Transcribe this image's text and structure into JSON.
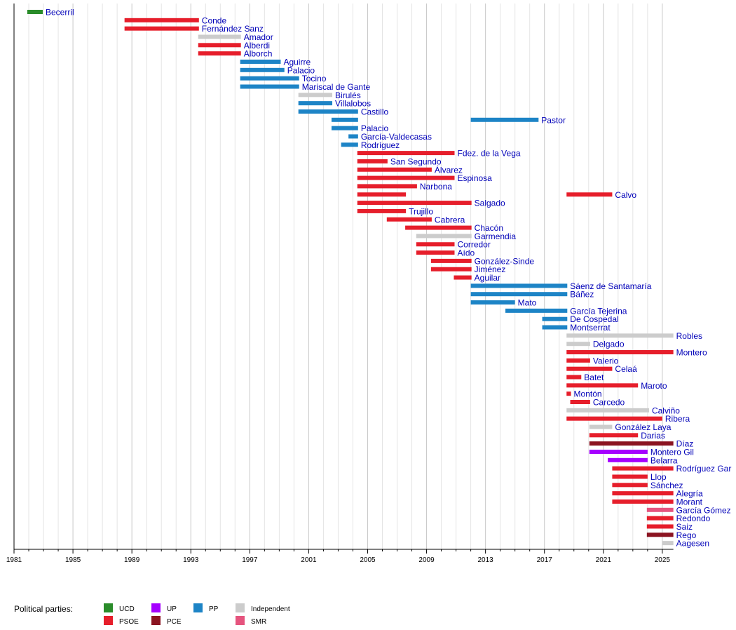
{
  "chart_data": {
    "type": "timeline",
    "title": "",
    "xlabel": "",
    "ylabel": "",
    "xlim": [
      1981,
      2025.75
    ],
    "x_ticks": [
      "1981",
      "1985",
      "1989",
      "1993",
      "1997",
      "2001",
      "2005",
      "2009",
      "2013",
      "2017",
      "2021",
      "2025"
    ],
    "grid": "vertical, yearly",
    "legend": {
      "title": "Political parties:",
      "placement": "bottom-left",
      "entries": [
        {
          "party": "UCD",
          "label": "UCD",
          "color": "#2a8c2a"
        },
        {
          "party": "PSOE",
          "label": "PSOE",
          "color": "#e61e2b"
        },
        {
          "party": "UP",
          "label": "UP",
          "color": "#a500ff"
        },
        {
          "party": "PP",
          "label": "PP",
          "color": "#1d84c6"
        },
        {
          "party": "PCE",
          "label": "PCE",
          "color": "#8b1421"
        },
        {
          "party": "IND",
          "label": "Independent",
          "color": "#cccccc"
        },
        {
          "party": "SMR",
          "label": "SMR",
          "color": "#e5547e"
        }
      ]
    },
    "rows": [
      {
        "label": "Becerril",
        "bars": [
          {
            "start": 1981.9,
            "end": 1982.95,
            "party": "UCD"
          }
        ]
      },
      {
        "label": "Conde",
        "bars": [
          {
            "start": 1988.5,
            "end": 1993.55,
            "party": "PSOE"
          }
        ]
      },
      {
        "label": "Fernández Sanz",
        "bars": [
          {
            "start": 1988.5,
            "end": 1993.55,
            "party": "PSOE"
          }
        ]
      },
      {
        "label": "Amador",
        "bars": [
          {
            "start": 1993.5,
            "end": 1996.4,
            "party": "IND"
          }
        ]
      },
      {
        "label": "Alberdi",
        "bars": [
          {
            "start": 1993.5,
            "end": 1996.4,
            "party": "PSOE"
          }
        ]
      },
      {
        "label": "Alborch",
        "bars": [
          {
            "start": 1993.5,
            "end": 1996.4,
            "party": "PSOE"
          }
        ]
      },
      {
        "label": "Aguirre",
        "bars": [
          {
            "start": 1996.35,
            "end": 1999.1,
            "party": "PP"
          }
        ]
      },
      {
        "label": "Palacio",
        "bars": [
          {
            "start": 1996.35,
            "end": 1999.35,
            "party": "PP"
          }
        ]
      },
      {
        "label": "Tocino",
        "bars": [
          {
            "start": 1996.35,
            "end": 2000.35,
            "party": "PP"
          }
        ]
      },
      {
        "label": "Mariscal de Gante",
        "bars": [
          {
            "start": 1996.35,
            "end": 2000.35,
            "party": "PP"
          }
        ]
      },
      {
        "label": "Birulés",
        "bars": [
          {
            "start": 2000.3,
            "end": 2002.6,
            "party": "IND"
          }
        ]
      },
      {
        "label": "Villalobos",
        "bars": [
          {
            "start": 2000.3,
            "end": 2002.6,
            "party": "PP"
          }
        ]
      },
      {
        "label": "Castillo",
        "bars": [
          {
            "start": 2000.3,
            "end": 2004.35,
            "party": "PP"
          }
        ]
      },
      {
        "label": "Pastor",
        "bars": [
          {
            "start": 2002.55,
            "end": 2004.35,
            "party": "PP"
          },
          {
            "start": 2012.0,
            "end": 2016.6,
            "party": "PP"
          }
        ]
      },
      {
        "label": "Palacio",
        "bars": [
          {
            "start": 2002.55,
            "end": 2004.35,
            "party": "PP"
          }
        ]
      },
      {
        "label": "García-Valdecasas",
        "bars": [
          {
            "start": 2003.7,
            "end": 2004.35,
            "party": "PP"
          }
        ]
      },
      {
        "label": "Rodríguez",
        "bars": [
          {
            "start": 2003.2,
            "end": 2004.35,
            "party": "PP"
          }
        ]
      },
      {
        "label": "Fdez. de la Vega",
        "bars": [
          {
            "start": 2004.3,
            "end": 2010.9,
            "party": "PSOE"
          }
        ]
      },
      {
        "label": "San Segundo",
        "bars": [
          {
            "start": 2004.3,
            "end": 2006.35,
            "party": "PSOE"
          }
        ]
      },
      {
        "label": "Álvarez",
        "bars": [
          {
            "start": 2004.3,
            "end": 2009.35,
            "party": "PSOE"
          }
        ]
      },
      {
        "label": "Espinosa",
        "bars": [
          {
            "start": 2004.3,
            "end": 2010.9,
            "party": "PSOE"
          }
        ]
      },
      {
        "label": "Narbona",
        "bars": [
          {
            "start": 2004.3,
            "end": 2008.35,
            "party": "PSOE"
          }
        ]
      },
      {
        "label": "Calvo",
        "bars": [
          {
            "start": 2004.3,
            "end": 2007.6,
            "party": "PSOE"
          },
          {
            "start": 2018.5,
            "end": 2021.6,
            "party": "PSOE"
          }
        ]
      },
      {
        "label": "Salgado",
        "bars": [
          {
            "start": 2004.3,
            "end": 2012.05,
            "party": "PSOE"
          }
        ]
      },
      {
        "label": "Trujillo",
        "bars": [
          {
            "start": 2004.3,
            "end": 2007.6,
            "party": "PSOE"
          }
        ]
      },
      {
        "label": "Cabrera",
        "bars": [
          {
            "start": 2006.3,
            "end": 2009.35,
            "party": "PSOE"
          }
        ]
      },
      {
        "label": "Chacón",
        "bars": [
          {
            "start": 2007.55,
            "end": 2012.05,
            "party": "PSOE"
          }
        ]
      },
      {
        "label": "Garmendia",
        "bars": [
          {
            "start": 2008.3,
            "end": 2012.05,
            "party": "IND"
          }
        ]
      },
      {
        "label": "Corredor",
        "bars": [
          {
            "start": 2008.3,
            "end": 2010.9,
            "party": "PSOE"
          }
        ]
      },
      {
        "label": "Aído",
        "bars": [
          {
            "start": 2008.3,
            "end": 2010.9,
            "party": "PSOE"
          }
        ]
      },
      {
        "label": "González-Sinde",
        "bars": [
          {
            "start": 2009.3,
            "end": 2012.05,
            "party": "PSOE"
          }
        ]
      },
      {
        "label": "Jiménez",
        "bars": [
          {
            "start": 2009.3,
            "end": 2012.05,
            "party": "PSOE"
          }
        ]
      },
      {
        "label": "Aguilar",
        "bars": [
          {
            "start": 2010.85,
            "end": 2012.05,
            "party": "PSOE"
          }
        ]
      },
      {
        "label": "Sáenz de Santamaría",
        "bars": [
          {
            "start": 2012.0,
            "end": 2018.55,
            "party": "PP"
          }
        ]
      },
      {
        "label": "Báñez",
        "bars": [
          {
            "start": 2012.0,
            "end": 2018.55,
            "party": "PP"
          }
        ]
      },
      {
        "label": "Mato",
        "bars": [
          {
            "start": 2012.0,
            "end": 2015.0,
            "party": "PP"
          }
        ]
      },
      {
        "label": "García Tejerina",
        "bars": [
          {
            "start": 2014.35,
            "end": 2018.55,
            "party": "PP"
          }
        ]
      },
      {
        "label": "De Cospedal",
        "bars": [
          {
            "start": 2016.85,
            "end": 2018.55,
            "party": "PP"
          }
        ]
      },
      {
        "label": "Montserrat",
        "bars": [
          {
            "start": 2016.85,
            "end": 2018.55,
            "party": "PP"
          }
        ]
      },
      {
        "label": "Robles",
        "bars": [
          {
            "start": 2018.5,
            "end": 2025.75,
            "party": "IND"
          }
        ]
      },
      {
        "label": "Delgado",
        "bars": [
          {
            "start": 2018.5,
            "end": 2020.1,
            "party": "IND"
          }
        ]
      },
      {
        "label": "Montero",
        "bars": [
          {
            "start": 2018.5,
            "end": 2025.75,
            "party": "PSOE"
          }
        ]
      },
      {
        "label": "Valerio",
        "bars": [
          {
            "start": 2018.5,
            "end": 2020.1,
            "party": "PSOE"
          }
        ]
      },
      {
        "label": "Celaá",
        "bars": [
          {
            "start": 2018.5,
            "end": 2021.6,
            "party": "PSOE"
          }
        ]
      },
      {
        "label": "Batet",
        "bars": [
          {
            "start": 2018.5,
            "end": 2019.5,
            "party": "PSOE"
          }
        ]
      },
      {
        "label": "Maroto",
        "bars": [
          {
            "start": 2018.5,
            "end": 2023.35,
            "party": "PSOE"
          }
        ]
      },
      {
        "label": "Montón",
        "bars": [
          {
            "start": 2018.5,
            "end": 2018.8,
            "party": "PSOE"
          }
        ]
      },
      {
        "label": "Carcedo",
        "bars": [
          {
            "start": 2018.75,
            "end": 2020.1,
            "party": "PSOE"
          }
        ]
      },
      {
        "label": "Calviño",
        "bars": [
          {
            "start": 2018.5,
            "end": 2024.1,
            "party": "IND"
          }
        ]
      },
      {
        "label": "Ribera",
        "bars": [
          {
            "start": 2018.5,
            "end": 2025.0,
            "party": "PSOE"
          }
        ]
      },
      {
        "label": "González Laya",
        "bars": [
          {
            "start": 2020.05,
            "end": 2021.6,
            "party": "IND"
          }
        ]
      },
      {
        "label": "Darias",
        "bars": [
          {
            "start": 2020.05,
            "end": 2023.35,
            "party": "PSOE"
          }
        ]
      },
      {
        "label": "Díaz",
        "bars": [
          {
            "start": 2020.05,
            "end": 2025.75,
            "party": "PCE"
          }
        ]
      },
      {
        "label": "Montero Gil",
        "bars": [
          {
            "start": 2020.05,
            "end": 2024.0,
            "party": "UP"
          }
        ]
      },
      {
        "label": "Belarra",
        "bars": [
          {
            "start": 2021.3,
            "end": 2024.0,
            "party": "UP"
          }
        ]
      },
      {
        "label": "Rodríguez Gar",
        "bars": [
          {
            "start": 2021.6,
            "end": 2025.75,
            "party": "PSOE"
          }
        ]
      },
      {
        "label": "Llop",
        "bars": [
          {
            "start": 2021.6,
            "end": 2024.0,
            "party": "PSOE"
          }
        ]
      },
      {
        "label": "Sánchez",
        "bars": [
          {
            "start": 2021.6,
            "end": 2024.0,
            "party": "PSOE"
          }
        ]
      },
      {
        "label": "Alegría",
        "bars": [
          {
            "start": 2021.6,
            "end": 2025.75,
            "party": "PSOE"
          }
        ]
      },
      {
        "label": "Morant",
        "bars": [
          {
            "start": 2021.6,
            "end": 2025.75,
            "party": "PSOE"
          }
        ]
      },
      {
        "label": "García Gómez",
        "bars": [
          {
            "start": 2023.95,
            "end": 2025.75,
            "party": "SMR"
          }
        ]
      },
      {
        "label": "Redondo",
        "bars": [
          {
            "start": 2023.95,
            "end": 2025.75,
            "party": "PSOE"
          }
        ]
      },
      {
        "label": "Saiz",
        "bars": [
          {
            "start": 2023.95,
            "end": 2025.75,
            "party": "PSOE"
          }
        ]
      },
      {
        "label": "Rego",
        "bars": [
          {
            "start": 2023.95,
            "end": 2025.75,
            "party": "PCE"
          }
        ]
      },
      {
        "label": "Aagesen",
        "bars": [
          {
            "start": 2025.0,
            "end": 2025.75,
            "party": "IND"
          }
        ]
      }
    ]
  }
}
